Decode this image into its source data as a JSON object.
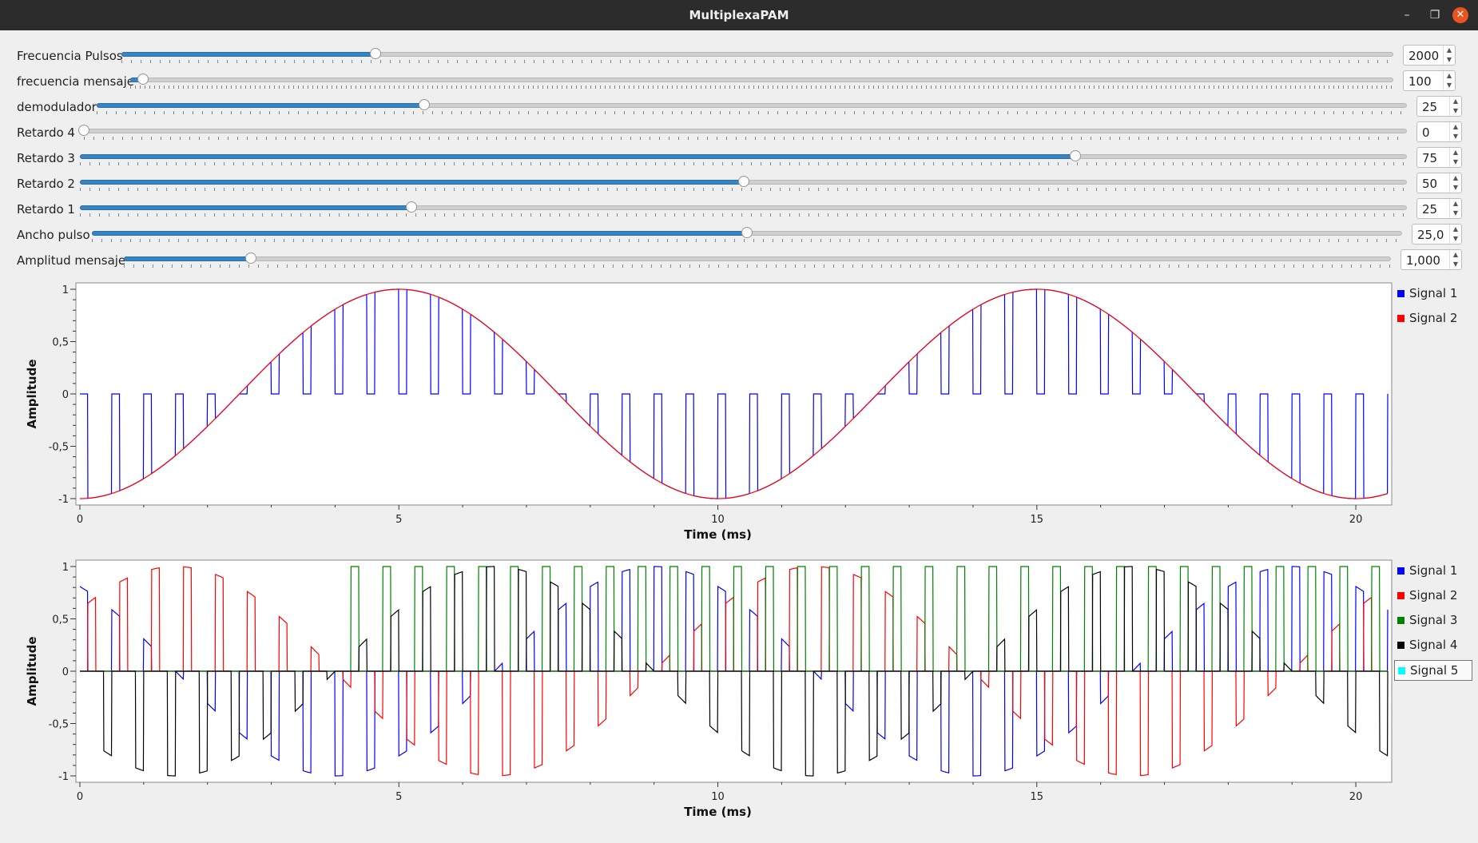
{
  "window": {
    "title": "MultiplexaPAM",
    "minimize_glyph": "–",
    "restore_glyph": "❐",
    "close_glyph": "✕"
  },
  "controls": [
    {
      "label": "Frecuencia Pulsos",
      "value": "2000",
      "level": 0.2
    },
    {
      "label": "frecuencia mensaje",
      "value": "100",
      "level": 0.01
    },
    {
      "label": "demodulador",
      "value": "25",
      "level": 0.25
    },
    {
      "label": "Retardo 4",
      "value": "0",
      "level": 0.0
    },
    {
      "label": "Retardo 3",
      "value": "75",
      "level": 0.75
    },
    {
      "label": "Retardo 2",
      "value": "50",
      "level": 0.5
    },
    {
      "label": "Retardo 1",
      "value": "25",
      "level": 0.25
    },
    {
      "label": "Ancho pulso",
      "value": "25,0",
      "level": 0.5
    },
    {
      "label": "Amplitud mensaje",
      "value": "1,000",
      "level": 0.1
    }
  ],
  "chart_data": [
    {
      "type": "line",
      "xlabel": "Time (ms)",
      "ylabel": "Amplitude",
      "xlim": [
        0,
        20.5
      ],
      "ylim": [
        -1,
        1
      ],
      "x_ticks": [
        0,
        5,
        10,
        15,
        20
      ],
      "x_tick_labels": [
        "0",
        "5",
        "10",
        "15",
        "20"
      ],
      "y_ticks": [
        1,
        0.5,
        0,
        -0.5,
        -1
      ],
      "y_tick_labels": [
        "1",
        "0,5",
        "0",
        "-0,5",
        "-1"
      ],
      "legend_position": "right",
      "grid": false,
      "series": [
        {
          "name": "Signal 1",
          "color": "#0000ff",
          "description_values": {
            "kind": "pam_samples_of_signal2",
            "pulse_period_ms": 0.5,
            "pulse_width_ms": 0.125,
            "pulse_offset_ms": 0.125
          }
        },
        {
          "name": "Signal 2",
          "color": "#ff0000",
          "description_values": {
            "kind": "sine",
            "amplitude": 1,
            "frequency_hz": 100,
            "minimum_at_ms": 0
          }
        }
      ]
    },
    {
      "type": "line",
      "xlabel": "Time (ms)",
      "ylabel": "Amplitude",
      "xlim": [
        0,
        20.5
      ],
      "ylim": [
        -1,
        1
      ],
      "x_ticks": [
        0,
        5,
        10,
        15,
        20
      ],
      "x_tick_labels": [
        "0",
        "5",
        "10",
        "15",
        "20"
      ],
      "y_ticks": [
        1,
        0.5,
        0,
        -0.5,
        -1
      ],
      "y_tick_labels": [
        "1",
        "0,5",
        "0",
        "-0,5",
        "-1"
      ],
      "legend_position": "right",
      "grid": false,
      "series": [
        {
          "name": "Signal 1",
          "color": "#0000ff",
          "description_values": {
            "kind": "pam_sine",
            "amplitude": 1,
            "frequency_hz": 100,
            "minimum_at_ms": 4.0,
            "pulse_offset_ms": 0.0
          }
        },
        {
          "name": "Signal 2",
          "color": "#ff0000",
          "description_values": {
            "kind": "pam_sine",
            "amplitude": 1,
            "frequency_hz": 100,
            "minimum_at_ms": 6.5,
            "pulse_offset_ms": 0.125
          }
        },
        {
          "name": "Signal 3",
          "color": "#008000",
          "description_values": {
            "kind": "pam_constant",
            "amplitude": 1,
            "pulse_offset_ms": 0.25,
            "start_ms": 4.2
          }
        },
        {
          "name": "Signal 4",
          "color": "#000000",
          "description_values": {
            "kind": "pam_sine",
            "amplitude": 1,
            "frequency_hz": 100,
            "minimum_at_ms": 1.5,
            "pulse_offset_ms": 0.375
          }
        },
        {
          "name": "Signal 5",
          "color": "#00ffff",
          "description_values": {
            "kind": "empty"
          }
        }
      ]
    }
  ]
}
